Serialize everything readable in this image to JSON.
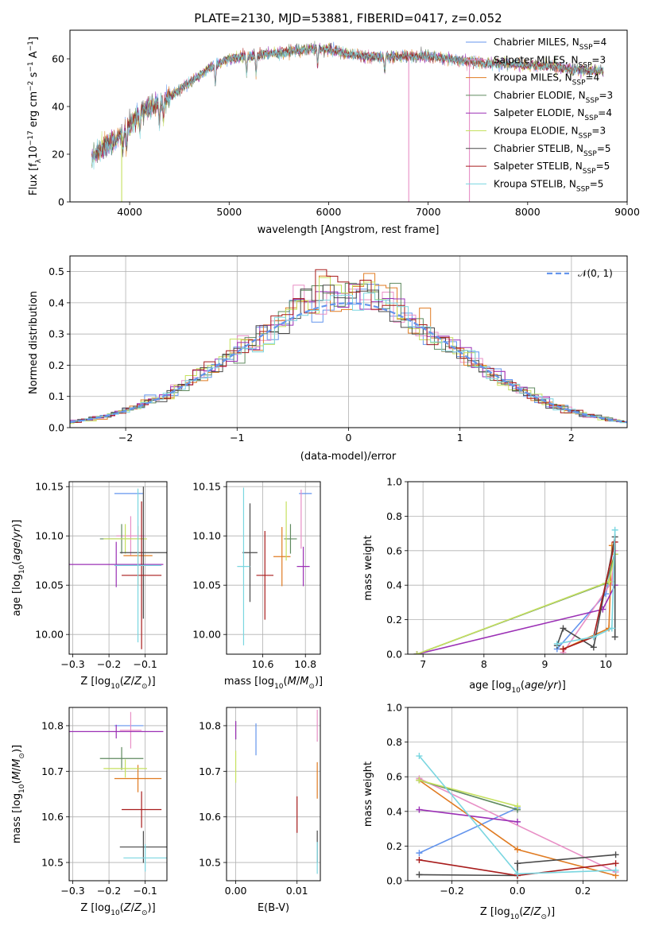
{
  "chart_data": {
    "series_colors": [
      "#6495ed",
      "#e88fc6",
      "#e07b22",
      "#5f8a5f",
      "#9b30b5",
      "#c5e05e",
      "#4a4a4a",
      "#a81c1c",
      "#7ad6e0"
    ],
    "spectrum": {
      "type": "line",
      "title": "PLATE=2130, MJD=53881, FIBERID=0417, z=0.052",
      "xlabel": "wavelength [Angstrom, rest frame]",
      "ylabel": "Flux [f_λ 10^-17 erg cm^-2 s^-1 A^-1]",
      "xlim": [
        3400,
        9000
      ],
      "ylim": [
        0,
        72
      ],
      "xticks": [
        "4000",
        "5000",
        "6000",
        "7000",
        "8000",
        "9000"
      ],
      "yticks": [
        "0",
        "20",
        "40",
        "60"
      ],
      "legend_position": "upper right",
      "legend": [
        {
          "base": "Chabrier MILES, N",
          "sub": "SSP",
          "suffix": "=4"
        },
        {
          "base": "Salpeter MILES, N",
          "sub": "SSP",
          "suffix": "=3"
        },
        {
          "base": "Kroupa MILES, N",
          "sub": "SSP",
          "suffix": "=4"
        },
        {
          "base": "Chabrier ELODIE, N",
          "sub": "SSP",
          "suffix": "=3"
        },
        {
          "base": "Salpeter ELODIE, N",
          "sub": "SSP",
          "suffix": "=4"
        },
        {
          "base": "Kroupa ELODIE, N",
          "sub": "SSP",
          "suffix": "=3"
        },
        {
          "base": "Chabrier STELIB, N",
          "sub": "SSP",
          "suffix": "=5"
        },
        {
          "base": "Salpeter STELIB, N",
          "sub": "SSP",
          "suffix": "=5"
        },
        {
          "base": "Kroupa STELIB, N",
          "sub": "SSP",
          "suffix": "=5"
        }
      ],
      "continuum_x": [
        3620,
        3700,
        3800,
        3900,
        4000,
        4100,
        4200,
        4300,
        4400,
        4600,
        4800,
        5000,
        5200,
        5400,
        5600,
        5800,
        6000,
        6200,
        6400,
        6600,
        6800,
        7000,
        7200,
        7400,
        7600,
        7800,
        8000,
        8200,
        8400,
        8600,
        8760
      ],
      "continuum_y": [
        19,
        22,
        24,
        28,
        32,
        37,
        40,
        41,
        44,
        50,
        56,
        60,
        61,
        62,
        63,
        64,
        64,
        62,
        61,
        61,
        61,
        61,
        60,
        59,
        58,
        58,
        57,
        57,
        56,
        55,
        55
      ]
    },
    "residuals": {
      "type": "step",
      "xlabel": "(data-model)/error",
      "ylabel": "Normed distribution",
      "xlim": [
        -2.5,
        2.5
      ],
      "ylim": [
        0,
        0.55
      ],
      "xticks": [
        "−2",
        "−1",
        "0",
        "1",
        "2"
      ],
      "yticks": [
        "0.0",
        "0.1",
        "0.2",
        "0.3",
        "0.4",
        "0.5"
      ],
      "legend_label": "𝒩(0, 1)",
      "bin_width": 0.1
    },
    "age_vs_Z": {
      "xlabel": "Z [log10(Z/Z⊙)]",
      "ylabel": "age  [log10(age/yr)]",
      "xlim": [
        -0.31,
        -0.04
      ],
      "ylim": [
        9.98,
        10.155
      ],
      "xticks": [
        "−0.3",
        "−0.2",
        "−0.1"
      ],
      "yticks": [
        "10.00",
        "10.05",
        "10.10",
        "10.15"
      ],
      "points": [
        {
          "x": -0.145,
          "y": 10.143,
          "xerr": 0.04,
          "yerr": 0.0
        },
        {
          "x": -0.14,
          "y": 10.1,
          "xerr": 0.04,
          "yerr": 0.02
        },
        {
          "x": -0.12,
          "y": 10.08,
          "xerr": 0.04,
          "yerr": 0.03
        },
        {
          "x": -0.165,
          "y": 10.097,
          "xerr": 0.06,
          "yerr": 0.015
        },
        {
          "x": -0.18,
          "y": 10.071,
          "xerr": 0.13,
          "yerr": 0.023
        },
        {
          "x": -0.155,
          "y": 10.097,
          "xerr": 0.06,
          "yerr": 0.015
        },
        {
          "x": -0.105,
          "y": 10.083,
          "xerr": 0.065,
          "yerr": 0.067
        },
        {
          "x": -0.11,
          "y": 10.06,
          "xerr": 0.055,
          "yerr": 0.075
        },
        {
          "x": -0.12,
          "y": 10.07,
          "xerr": 0.065,
          "yerr": 0.078
        }
      ]
    },
    "age_vs_mass": {
      "xlabel": "mass [log10(M/M⊙)]",
      "xlim": [
        10.43,
        10.87
      ],
      "ylim": [
        9.98,
        10.155
      ],
      "xticks": [
        "10.6",
        "10.8"
      ],
      "yticks": [
        "10.00",
        "10.05",
        "10.10",
        "10.15"
      ],
      "points": [
        {
          "x": 10.8,
          "y": 10.143,
          "xerr": 0.03,
          "yerr": 0.0
        },
        {
          "x": 10.78,
          "y": 10.117,
          "xerr": 0.0,
          "yerr": 0.03
        },
        {
          "x": 10.69,
          "y": 10.079,
          "xerr": 0.04,
          "yerr": 0.03
        },
        {
          "x": 10.73,
          "y": 10.097,
          "xerr": 0.03,
          "yerr": 0.015
        },
        {
          "x": 10.79,
          "y": 10.069,
          "xerr": 0.03,
          "yerr": 0.02
        },
        {
          "x": 10.71,
          "y": 10.105,
          "xerr": 0.0,
          "yerr": 0.03
        },
        {
          "x": 10.54,
          "y": 10.083,
          "xerr": 0.035,
          "yerr": 0.05
        },
        {
          "x": 10.61,
          "y": 10.06,
          "xerr": 0.04,
          "yerr": 0.045
        },
        {
          "x": 10.51,
          "y": 10.069,
          "xerr": 0.03,
          "yerr": 0.08
        }
      ]
    },
    "mass_vs_Z": {
      "xlabel": "Z [log10(Z/Z⊙)]",
      "ylabel": "mass [log10(M/M⊙)]",
      "xlim": [
        -0.31,
        -0.04
      ],
      "ylim": [
        10.46,
        10.84
      ],
      "xticks": [
        "−0.3",
        "−0.2",
        "−0.1"
      ],
      "yticks": [
        "10.5",
        "10.6",
        "10.7",
        "10.8"
      ],
      "points": [
        {
          "x": -0.145,
          "y": 10.8,
          "xerr": 0.04,
          "yerr": 0.0
        },
        {
          "x": -0.14,
          "y": 10.79,
          "xerr": 0.03,
          "yerr": 0.04
        },
        {
          "x": -0.12,
          "y": 10.684,
          "xerr": 0.065,
          "yerr": 0.03
        },
        {
          "x": -0.165,
          "y": 10.728,
          "xerr": 0.06,
          "yerr": 0.025
        },
        {
          "x": -0.18,
          "y": 10.787,
          "xerr": 0.13,
          "yerr": 0.015
        },
        {
          "x": -0.155,
          "y": 10.706,
          "xerr": 0.06,
          "yerr": 0.02
        },
        {
          "x": -0.105,
          "y": 10.534,
          "xerr": 0.065,
          "yerr": 0.035
        },
        {
          "x": -0.11,
          "y": 10.616,
          "xerr": 0.055,
          "yerr": 0.04
        },
        {
          "x": -0.1,
          "y": 10.51,
          "xerr": 0.06,
          "yerr": 0.03
        }
      ]
    },
    "mass_vs_ebv": {
      "xlabel": "E(B-V)",
      "xlim": [
        -0.0015,
        0.0138
      ],
      "ylim": [
        10.46,
        10.84
      ],
      "xticks": [
        "0.00",
        "0.01"
      ],
      "yticks": [
        "10.5",
        "10.6",
        "10.7",
        "10.8"
      ],
      "points": [
        {
          "x": 0.0033,
          "y": 10.77,
          "xerr": 0.0,
          "yerr": 0.035
        },
        {
          "x": 0.0133,
          "y": 10.8,
          "xerr": 0.0,
          "yerr": 0.035
        },
        {
          "x": 0.0133,
          "y": 10.68,
          "xerr": 0.0,
          "yerr": 0.04
        },
        {
          "x": 0.0,
          "y": 10.79,
          "xerr": 0.0,
          "yerr": 0.02
        },
        {
          "x": 0.0,
          "y": 10.79,
          "xerr": 0.0,
          "yerr": 0.02
        },
        {
          "x": 0.0,
          "y": 10.71,
          "xerr": 0.0,
          "yerr": 0.035
        },
        {
          "x": 0.0133,
          "y": 10.535,
          "xerr": 0.0,
          "yerr": 0.035
        },
        {
          "x": 0.01,
          "y": 10.605,
          "xerr": 0.0,
          "yerr": 0.04
        },
        {
          "x": 0.0133,
          "y": 10.51,
          "xerr": 0.0,
          "yerr": 0.035
        }
      ]
    },
    "weight_vs_age": {
      "xlabel": "age  [log10(age/yr)]",
      "ylabel": "mass weight",
      "xlim": [
        6.75,
        10.35
      ],
      "ylim": [
        0,
        1
      ],
      "xticks": [
        "7",
        "8",
        "9",
        "10"
      ],
      "yticks": [
        "0.0",
        "0.2",
        "0.4",
        "0.6",
        "0.8",
        "1.0"
      ],
      "series": [
        {
          "x": [
            9.2,
            10.0,
            10.15
          ],
          "y": [
            0.03,
            0.35,
            0.6
          ]
        },
        {
          "x": [
            9.3,
            10.1,
            10.15
          ],
          "y": [
            0.01,
            0.42,
            0.6
          ]
        },
        {
          "x": [
            9.3,
            10.05,
            10.1
          ],
          "y": [
            0.03,
            0.15,
            0.63
          ]
        },
        {
          "x": [
            6.9,
            10.0,
            10.15
          ],
          "y": [
            0.0,
            0.41,
            0.58
          ]
        },
        {
          "x": [
            6.9,
            9.95,
            10.15
          ],
          "y": [
            0.0,
            0.26,
            0.4
          ]
        },
        {
          "x": [
            6.9,
            10.05,
            10.15
          ],
          "y": [
            0.0,
            0.42,
            0.58
          ]
        },
        {
          "x": [
            9.2,
            9.3,
            9.8,
            10.15,
            10.15
          ],
          "y": [
            0.05,
            0.15,
            0.04,
            0.68,
            0.1
          ]
        },
        {
          "x": [
            9.3,
            9.8,
            10.15
          ],
          "y": [
            0.03,
            0.1,
            0.65
          ]
        },
        {
          "x": [
            9.2,
            9.8,
            10.1,
            10.15
          ],
          "y": [
            0.06,
            0.1,
            0.15,
            0.72
          ]
        }
      ]
    },
    "weight_vs_Z": {
      "xlabel": "Z [log10(Z/Z⊙)]",
      "ylabel": "mass weight",
      "xlim": [
        -0.335,
        0.335
      ],
      "ylim": [
        0,
        1
      ],
      "xticks": [
        "−0.2",
        "0.0",
        "0.2"
      ],
      "yticks": [
        "0.0",
        "0.2",
        "0.4",
        "0.6",
        "0.8",
        "1.0"
      ],
      "series": [
        {
          "x": [
            -0.3,
            0.0
          ],
          "y": [
            0.16,
            0.42
          ]
        },
        {
          "x": [
            -0.3,
            0.3
          ],
          "y": [
            0.59,
            0.05
          ]
        },
        {
          "x": [
            -0.3,
            0.0,
            0.3
          ],
          "y": [
            0.58,
            0.18,
            0.03
          ]
        },
        {
          "x": [
            -0.3,
            0.0
          ],
          "y": [
            0.58,
            0.41
          ]
        },
        {
          "x": [
            -0.3,
            0.0
          ],
          "y": [
            0.41,
            0.34
          ]
        },
        {
          "x": [
            -0.3,
            0.0
          ],
          "y": [
            0.58,
            0.43
          ]
        },
        {
          "x": [
            -0.3,
            0.0,
            0.0,
            0.3
          ],
          "y": [
            0.035,
            0.03,
            0.1,
            0.15
          ]
        },
        {
          "x": [
            -0.3,
            0.0,
            0.3
          ],
          "y": [
            0.12,
            0.03,
            0.1
          ]
        },
        {
          "x": [
            -0.3,
            0.0,
            0.3
          ],
          "y": [
            0.72,
            0.04,
            0.06
          ]
        }
      ]
    }
  }
}
